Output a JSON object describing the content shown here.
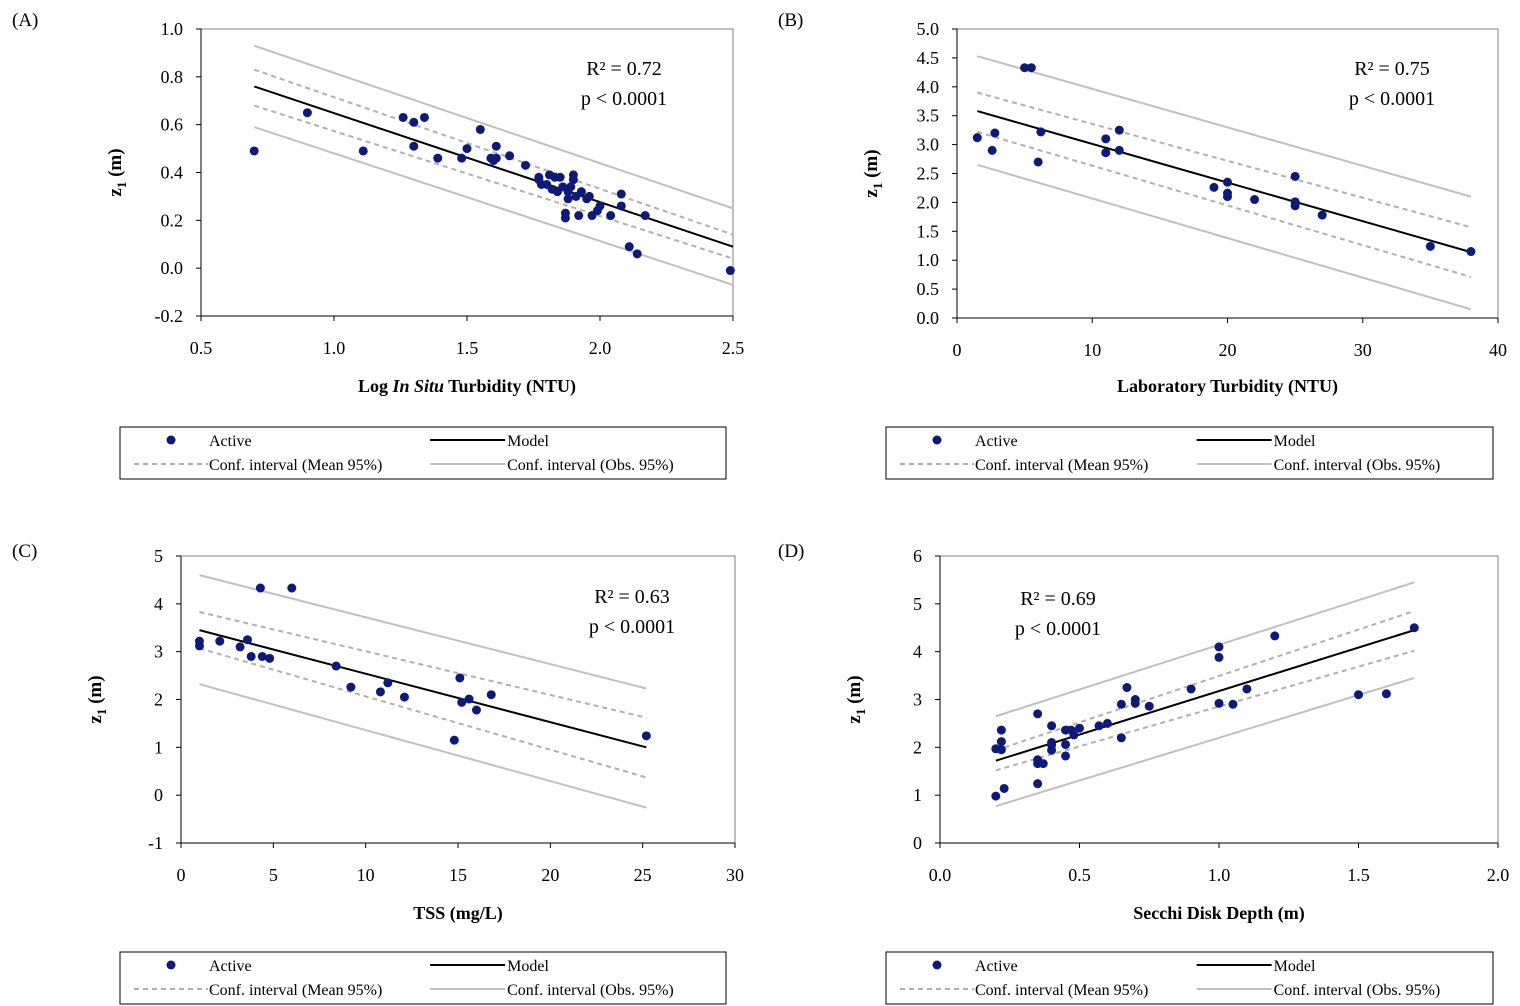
{
  "legend": {
    "active": "Active",
    "model": "Model",
    "ci_mean": "Conf. interval (Mean 95%)",
    "ci_obs": "Conf. interval (Obs. 95%)"
  },
  "colors": {
    "point": "#0d1a7a",
    "model": "#000000",
    "ci_mean": "#b0b0b0",
    "ci_obs": "#c0c0c0",
    "axis": "#000000"
  },
  "chart_data": [
    {
      "panel": "(A)",
      "type": "scatter",
      "xlabel_parts": [
        "Log ",
        "In Situ",
        "  Turbidity (NTU)"
      ],
      "ylabel": "z1 (m)",
      "xlim": [
        0.5,
        2.5
      ],
      "ylim": [
        -0.2,
        1.0
      ],
      "xticks": [
        0.5,
        1.0,
        1.5,
        2.0,
        2.5
      ],
      "yticks": [
        -0.2,
        0.0,
        0.2,
        0.4,
        0.6,
        0.8,
        1.0
      ],
      "x_decimals": 1,
      "y_decimals": 1,
      "annotation": [
        "R² = 0.72",
        "p < 0.0001"
      ],
      "model": [
        [
          0.7,
          0.76
        ],
        [
          2.5,
          0.09
        ]
      ],
      "ci_mean_upper": [
        [
          0.7,
          0.83
        ],
        [
          2.5,
          0.14
        ]
      ],
      "ci_mean_lower": [
        [
          0.7,
          0.68
        ],
        [
          2.5,
          0.04
        ]
      ],
      "ci_obs_upper": [
        [
          0.7,
          0.93
        ],
        [
          2.5,
          0.25
        ]
      ],
      "ci_obs_lower": [
        [
          0.7,
          0.59
        ],
        [
          2.5,
          -0.07
        ]
      ],
      "points": [
        [
          0.7,
          0.49
        ],
        [
          0.9,
          0.65
        ],
        [
          1.11,
          0.49
        ],
        [
          1.26,
          0.63
        ],
        [
          1.3,
          0.61
        ],
        [
          1.3,
          0.51
        ],
        [
          1.34,
          0.63
        ],
        [
          1.39,
          0.46
        ],
        [
          1.48,
          0.46
        ],
        [
          1.5,
          0.5
        ],
        [
          1.55,
          0.58
        ],
        [
          1.59,
          0.46
        ],
        [
          1.6,
          0.45
        ],
        [
          1.61,
          0.51
        ],
        [
          1.61,
          0.46
        ],
        [
          1.66,
          0.47
        ],
        [
          1.72,
          0.43
        ],
        [
          1.77,
          0.38
        ],
        [
          1.77,
          0.37
        ],
        [
          1.78,
          0.35
        ],
        [
          1.8,
          0.35
        ],
        [
          1.81,
          0.39
        ],
        [
          1.82,
          0.33
        ],
        [
          1.83,
          0.38
        ],
        [
          1.84,
          0.32
        ],
        [
          1.85,
          0.38
        ],
        [
          1.86,
          0.34
        ],
        [
          1.87,
          0.23
        ],
        [
          1.87,
          0.21
        ],
        [
          1.88,
          0.32
        ],
        [
          1.88,
          0.29
        ],
        [
          1.89,
          0.34
        ],
        [
          1.9,
          0.39
        ],
        [
          1.9,
          0.37
        ],
        [
          1.91,
          0.3
        ],
        [
          1.92,
          0.22
        ],
        [
          1.93,
          0.32
        ],
        [
          1.95,
          0.29
        ],
        [
          1.96,
          0.3
        ],
        [
          1.97,
          0.22
        ],
        [
          1.99,
          0.24
        ],
        [
          2.0,
          0.26
        ],
        [
          2.04,
          0.22
        ],
        [
          2.08,
          0.31
        ],
        [
          2.08,
          0.26
        ],
        [
          2.11,
          0.09
        ],
        [
          2.14,
          0.06
        ],
        [
          2.17,
          0.22
        ],
        [
          2.49,
          -0.01
        ]
      ]
    },
    {
      "panel": "(B)",
      "type": "scatter",
      "xlabel_parts": [
        "Laboratory Turbidity (NTU)"
      ],
      "ylabel": "z1 (m)",
      "xlim": [
        0,
        40
      ],
      "ylim": [
        0.0,
        5.0
      ],
      "xticks": [
        0,
        10,
        20,
        30,
        40
      ],
      "yticks": [
        0.0,
        0.5,
        1.0,
        1.5,
        2.0,
        2.5,
        3.0,
        3.5,
        4.0,
        4.5,
        5.0
      ],
      "x_decimals": 0,
      "y_decimals": 1,
      "annotation": [
        "R² = 0.75",
        "p < 0.0001"
      ],
      "model": [
        [
          1.5,
          3.58
        ],
        [
          38,
          1.14
        ]
      ],
      "ci_mean_upper": [
        [
          1.5,
          3.9
        ],
        [
          38,
          1.57
        ]
      ],
      "ci_mean_lower": [
        [
          1.5,
          3.22
        ],
        [
          38,
          0.71
        ]
      ],
      "ci_obs_upper": [
        [
          1.5,
          4.53
        ],
        [
          38,
          2.1
        ]
      ],
      "ci_obs_lower": [
        [
          1.5,
          2.65
        ],
        [
          38,
          0.15
        ]
      ],
      "points": [
        [
          1.5,
          3.12
        ],
        [
          2.6,
          2.9
        ],
        [
          2.8,
          3.2
        ],
        [
          5.0,
          4.33
        ],
        [
          5.5,
          4.33
        ],
        [
          6.0,
          2.7
        ],
        [
          6.2,
          3.22
        ],
        [
          11,
          3.1
        ],
        [
          11,
          2.86
        ],
        [
          12,
          3.25
        ],
        [
          12,
          2.9
        ],
        [
          19,
          2.26
        ],
        [
          20,
          2.35
        ],
        [
          20,
          2.16
        ],
        [
          20,
          2.1
        ],
        [
          22,
          2.05
        ],
        [
          25,
          2.45
        ],
        [
          25,
          2.01
        ],
        [
          25,
          1.94
        ],
        [
          27,
          1.78
        ],
        [
          35,
          1.24
        ],
        [
          38,
          1.15
        ]
      ]
    },
    {
      "panel": "(C)",
      "type": "scatter",
      "xlabel_parts": [
        "TSS (mg/L)"
      ],
      "ylabel": "z1 (m)",
      "xlim": [
        0,
        30
      ],
      "ylim": [
        -1,
        5
      ],
      "xticks": [
        0,
        5,
        10,
        15,
        20,
        25,
        30
      ],
      "yticks": [
        -1,
        0,
        1,
        2,
        3,
        4,
        5
      ],
      "x_decimals": 0,
      "y_decimals": 0,
      "annotation": [
        "R² = 0.63",
        "p < 0.0001"
      ],
      "model": [
        [
          1,
          3.45
        ],
        [
          25.2,
          1.0
        ]
      ],
      "ci_mean_upper": [
        [
          1,
          3.83
        ],
        [
          25.2,
          1.62
        ]
      ],
      "ci_mean_lower": [
        [
          1,
          3.07
        ],
        [
          25.2,
          0.37
        ]
      ],
      "ci_obs_upper": [
        [
          1,
          4.6
        ],
        [
          25.2,
          2.23
        ]
      ],
      "ci_obs_lower": [
        [
          1,
          2.32
        ],
        [
          25.2,
          -0.26
        ]
      ],
      "points": [
        [
          1,
          3.22
        ],
        [
          1,
          3.12
        ],
        [
          2.1,
          3.22
        ],
        [
          3.2,
          3.1
        ],
        [
          3.6,
          3.25
        ],
        [
          3.8,
          2.9
        ],
        [
          4.3,
          4.33
        ],
        [
          4.4,
          2.9
        ],
        [
          4.8,
          2.86
        ],
        [
          6,
          4.33
        ],
        [
          8.4,
          2.7
        ],
        [
          9.2,
          2.26
        ],
        [
          10.8,
          2.16
        ],
        [
          11.2,
          2.35
        ],
        [
          12.1,
          2.05
        ],
        [
          14.8,
          1.15
        ],
        [
          15.1,
          2.45
        ],
        [
          15.2,
          1.94
        ],
        [
          15.6,
          2.01
        ],
        [
          16,
          1.78
        ],
        [
          16.8,
          2.1
        ],
        [
          25.2,
          1.24
        ]
      ]
    },
    {
      "panel": "(D)",
      "type": "scatter",
      "xlabel_parts": [
        "Secchi Disk Depth (m)"
      ],
      "ylabel": "z1 (m)",
      "xlim": [
        0.0,
        2.0
      ],
      "ylim": [
        0,
        6
      ],
      "xticks": [
        0.0,
        0.5,
        1.0,
        1.5,
        2.0
      ],
      "yticks": [
        0,
        1,
        2,
        3,
        4,
        5,
        6
      ],
      "x_decimals": 1,
      "y_decimals": 0,
      "annotation": [
        "R² = 0.69",
        "p < 0.0001"
      ],
      "model": [
        [
          0.2,
          1.72
        ],
        [
          1.7,
          4.45
        ]
      ],
      "ci_mean_upper": [
        [
          0.2,
          1.94
        ],
        [
          1.7,
          4.85
        ]
      ],
      "ci_mean_lower": [
        [
          0.2,
          1.52
        ],
        [
          1.7,
          4.02
        ]
      ],
      "ci_obs_upper": [
        [
          0.2,
          2.65
        ],
        [
          1.7,
          5.45
        ]
      ],
      "ci_obs_lower": [
        [
          0.2,
          0.77
        ],
        [
          1.7,
          3.45
        ]
      ],
      "points": [
        [
          0.2,
          0.98
        ],
        [
          0.2,
          1.97
        ],
        [
          0.22,
          2.12
        ],
        [
          0.22,
          2.36
        ],
        [
          0.22,
          1.95
        ],
        [
          0.23,
          1.14
        ],
        [
          0.35,
          2.7
        ],
        [
          0.35,
          1.74
        ],
        [
          0.35,
          1.66
        ],
        [
          0.35,
          1.24
        ],
        [
          0.37,
          1.66
        ],
        [
          0.4,
          2.45
        ],
        [
          0.4,
          2.1
        ],
        [
          0.4,
          2.05
        ],
        [
          0.4,
          1.94
        ],
        [
          0.45,
          2.36
        ],
        [
          0.45,
          2.06
        ],
        [
          0.45,
          1.82
        ],
        [
          0.47,
          2.36
        ],
        [
          0.48,
          2.26
        ],
        [
          0.5,
          2.4
        ],
        [
          0.57,
          2.45
        ],
        [
          0.6,
          2.5
        ],
        [
          0.65,
          2.2
        ],
        [
          0.65,
          2.9
        ],
        [
          0.67,
          3.25
        ],
        [
          0.7,
          3.0
        ],
        [
          0.7,
          2.92
        ],
        [
          0.75,
          2.86
        ],
        [
          0.9,
          3.22
        ],
        [
          1.0,
          4.1
        ],
        [
          1.0,
          3.88
        ],
        [
          1.0,
          2.92
        ],
        [
          1.05,
          2.9
        ],
        [
          1.1,
          3.22
        ],
        [
          1.2,
          4.33
        ],
        [
          1.5,
          3.1
        ],
        [
          1.6,
          3.12
        ],
        [
          1.7,
          4.5
        ]
      ]
    }
  ]
}
